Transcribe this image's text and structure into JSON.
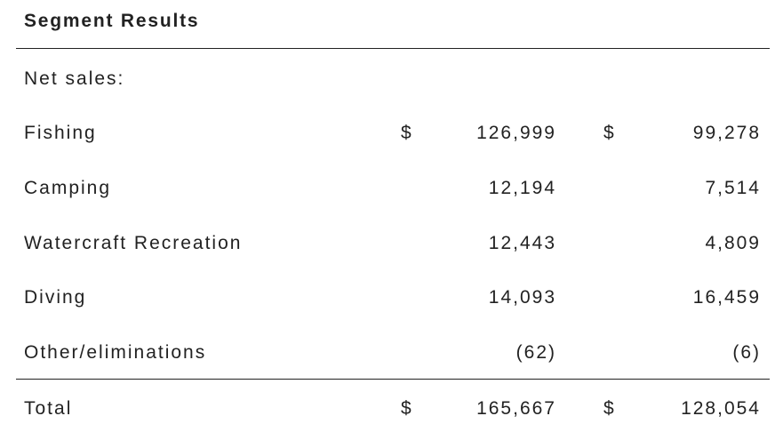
{
  "title": "Segment Results",
  "section_label": "Net sales:",
  "rows": [
    {
      "label": "Fishing",
      "currency_1": "$",
      "value_1": "126,999",
      "currency_2": "$",
      "value_2": "99,278"
    },
    {
      "label": "Camping",
      "currency_1": "",
      "value_1": "12,194",
      "currency_2": "",
      "value_2": "7,514"
    },
    {
      "label": "Watercraft Recreation",
      "currency_1": "",
      "value_1": "12,443",
      "currency_2": "",
      "value_2": "4,809"
    },
    {
      "label": "Diving",
      "currency_1": "",
      "value_1": "14,093",
      "currency_2": "",
      "value_2": "16,459"
    },
    {
      "label": "Other/eliminations",
      "currency_1": "",
      "value_1": "(62)",
      "currency_2": "",
      "value_2": "(6)"
    }
  ],
  "total": {
    "label": "Total",
    "currency_1": "$",
    "value_1": "165,667",
    "currency_2": "$",
    "value_2": "128,054"
  }
}
